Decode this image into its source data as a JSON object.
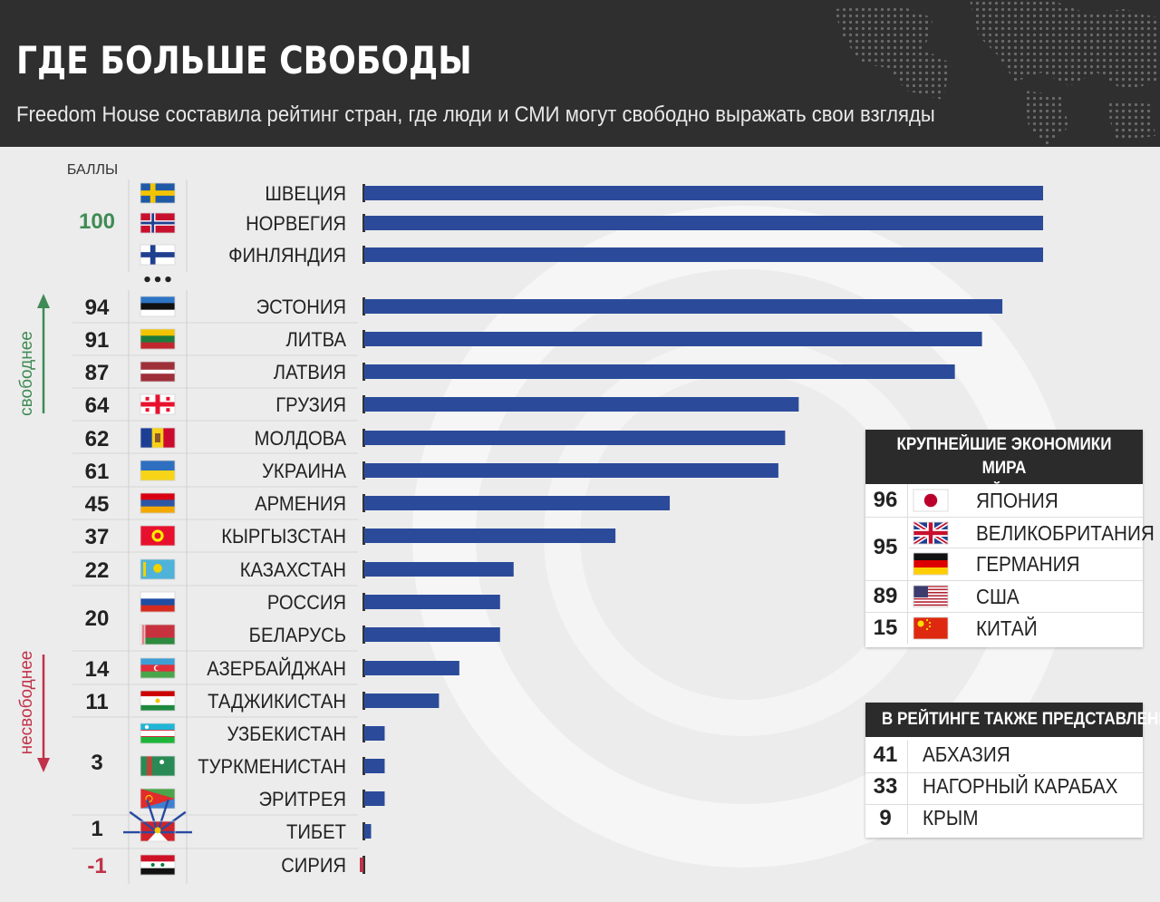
{
  "header": {
    "title": "ГДЕ БОЛЬШЕ СВОБОДЫ",
    "subtitle": "Freedom House составила рейтинг стран, где люди и СМИ могут свободно выражать свои взгляды"
  },
  "colors": {
    "bar": "#2b4b9a",
    "negative_bar": "#c0334a",
    "top_score": "#3f8b55",
    "negative_score": "#c0334a",
    "freer_arrow": "#3f8b55",
    "less_free_arrow": "#c0334a",
    "header_bg": "#2f2f2f"
  },
  "chart_data": {
    "type": "bar",
    "orientation": "horizontal",
    "score_header": "БАЛЛЫ",
    "ellipsis": "•••",
    "axis_notes": {
      "freer": "свободнее",
      "less_free": "несвободнее"
    },
    "xlim": [
      -1,
      100
    ],
    "categories": [
      "ШВЕЦИЯ",
      "НОРВЕГИЯ",
      "ФИНЛЯНДИЯ",
      "ЭСТОНИЯ",
      "ЛИТВА",
      "ЛАТВИЯ",
      "ГРУЗИЯ",
      "МОЛДОВА",
      "УКРАИНА",
      "АРМЕНИЯ",
      "КЫРГЫЗСТАН",
      "КАЗАХСТАН",
      "РОССИЯ",
      "БЕЛАРУСЬ",
      "АЗЕРБАЙДЖАН",
      "ТАДЖИКИСТАН",
      "УЗБЕКИСТАН",
      "ТУРКМЕНИСТАН",
      "ЭРИТРЕЯ",
      "ТИБЕТ",
      "СИРИЯ"
    ],
    "values": [
      100,
      100,
      100,
      94,
      91,
      87,
      64,
      62,
      61,
      45,
      37,
      22,
      20,
      20,
      14,
      11,
      3,
      3,
      3,
      1,
      -1
    ],
    "flags": [
      "sweden-flag",
      "norway-flag",
      "finland-flag",
      "estonia-flag",
      "lithuania-flag",
      "latvia-flag",
      "georgia-flag",
      "moldova-flag",
      "ukraine-flag",
      "armenia-flag",
      "kyrgyzstan-flag",
      "kazakhstan-flag",
      "russia-flag",
      "belarus-flag",
      "azerbaijan-flag",
      "tajikistan-flag",
      "uzbekistan-flag",
      "turkmenistan-flag",
      "eritrea-flag",
      "tibet-flag",
      "syria-flag"
    ],
    "score_labels": [
      "100",
      "94",
      "91",
      "87",
      "64",
      "62",
      "61",
      "45",
      "37",
      "22",
      "20",
      "14",
      "11",
      "3",
      "1",
      "-1"
    ]
  },
  "economies": {
    "title_line1": "КРУПНЕЙШИЕ ЭКОНОМИКИ МИРА",
    "title_line2": "В РЕЙТИНГЕ",
    "items": [
      {
        "score": "96",
        "name": "ЯПОНИЯ",
        "flag": "japan-flag"
      },
      {
        "score": "95",
        "name": "ВЕЛИКОБРИТАНИЯ",
        "flag": "uk-flag"
      },
      {
        "score": "95",
        "name": "ГЕРМАНИЯ",
        "flag": "germany-flag"
      },
      {
        "score": "89",
        "name": "США",
        "flag": "usa-flag"
      },
      {
        "score": "15",
        "name": "КИТАЙ",
        "flag": "china-flag"
      }
    ]
  },
  "also": {
    "title": "В РЕЙТИНГЕ ТАКЖЕ ПРЕДСТАВЛЕНЫ",
    "items": [
      {
        "score": "41",
        "name": "АБХАЗИЯ"
      },
      {
        "score": "33",
        "name": "НАГОРНЫЙ КАРАБАХ"
      },
      {
        "score": "9",
        "name": "КРЫМ"
      }
    ]
  }
}
